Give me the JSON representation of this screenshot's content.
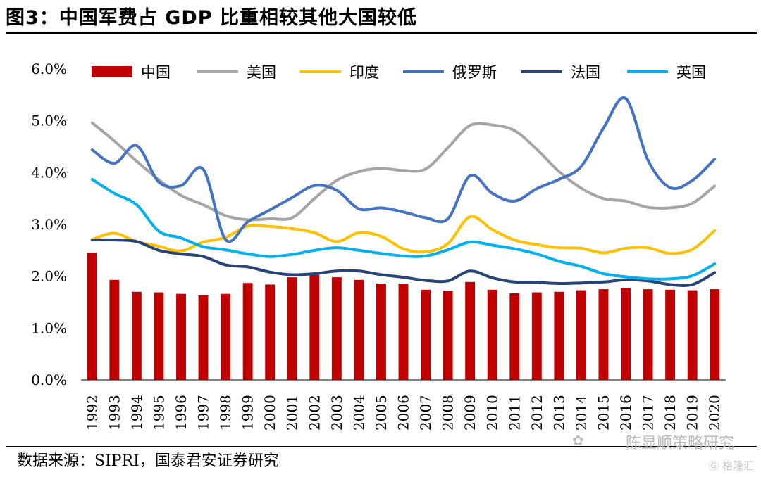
{
  "figure": {
    "title": "图3：中国军费占 GDP 比重相较其他大国较低",
    "source": "数据来源：SIPRI，国泰君安证券研究",
    "watermark": "陈显顺策略研究",
    "corner_logo": "格隆汇"
  },
  "colors": {
    "china": "#c00000",
    "usa": "#a5a5a5",
    "india": "#ffc000",
    "russia": "#4472c4",
    "france": "#264478",
    "uk": "#00b0f0"
  },
  "chart_data": {
    "type": "bar",
    "categories": [
      "1992",
      "1993",
      "1994",
      "1995",
      "1996",
      "1997",
      "1998",
      "1999",
      "2000",
      "2001",
      "2002",
      "2003",
      "2004",
      "2005",
      "2006",
      "2007",
      "2008",
      "2009",
      "2010",
      "2011",
      "2012",
      "2013",
      "2014",
      "2015",
      "2016",
      "2017",
      "2018",
      "2019",
      "2020"
    ],
    "ylim": [
      0,
      6
    ],
    "yticks": [
      "0.0%",
      "1.0%",
      "2.0%",
      "3.0%",
      "4.0%",
      "5.0%",
      "6.0%"
    ],
    "legend_position": "top",
    "bar_series": {
      "name": "中国",
      "values": [
        2.45,
        1.93,
        1.7,
        1.69,
        1.66,
        1.63,
        1.66,
        1.87,
        1.84,
        1.98,
        2.04,
        1.98,
        1.93,
        1.86,
        1.86,
        1.74,
        1.72,
        1.89,
        1.74,
        1.67,
        1.69,
        1.7,
        1.73,
        1.75,
        1.77,
        1.75,
        1.74,
        1.73,
        1.75
      ]
    },
    "line_series": [
      {
        "name": "美国",
        "key": "usa",
        "values": [
          4.96,
          4.61,
          4.22,
          3.86,
          3.56,
          3.38,
          3.17,
          3.09,
          3.11,
          3.13,
          3.5,
          3.85,
          4.02,
          4.08,
          4.04,
          4.07,
          4.48,
          4.91,
          4.92,
          4.81,
          4.45,
          4.02,
          3.7,
          3.5,
          3.45,
          3.33,
          3.32,
          3.41,
          3.74
        ]
      },
      {
        "name": "印度",
        "key": "india",
        "values": [
          2.71,
          2.83,
          2.67,
          2.58,
          2.49,
          2.66,
          2.75,
          2.97,
          2.96,
          2.92,
          2.84,
          2.67,
          2.84,
          2.77,
          2.53,
          2.47,
          2.63,
          3.15,
          2.9,
          2.7,
          2.61,
          2.55,
          2.54,
          2.45,
          2.54,
          2.55,
          2.44,
          2.52,
          2.88
        ]
      },
      {
        "name": "俄罗斯",
        "key": "russia",
        "values": [
          4.44,
          4.18,
          4.52,
          3.82,
          3.75,
          4.06,
          2.71,
          3.05,
          3.28,
          3.52,
          3.75,
          3.66,
          3.3,
          3.32,
          3.24,
          3.13,
          3.11,
          3.94,
          3.6,
          3.45,
          3.69,
          3.87,
          4.12,
          4.86,
          5.43,
          4.24,
          3.71,
          3.85,
          4.26
        ]
      },
      {
        "name": "法国",
        "key": "france",
        "values": [
          2.7,
          2.7,
          2.67,
          2.5,
          2.43,
          2.38,
          2.22,
          2.18,
          2.08,
          2.03,
          2.05,
          2.1,
          2.1,
          2.03,
          1.98,
          1.92,
          1.91,
          2.1,
          1.97,
          1.89,
          1.88,
          1.86,
          1.87,
          1.89,
          1.93,
          1.91,
          1.84,
          1.84,
          2.07
        ]
      },
      {
        "name": "英国",
        "key": "uk",
        "values": [
          3.87,
          3.6,
          3.38,
          2.87,
          2.74,
          2.57,
          2.51,
          2.43,
          2.38,
          2.42,
          2.5,
          2.55,
          2.5,
          2.44,
          2.39,
          2.39,
          2.51,
          2.66,
          2.6,
          2.53,
          2.43,
          2.29,
          2.19,
          2.05,
          1.99,
          1.95,
          1.95,
          2.01,
          2.24
        ]
      }
    ]
  }
}
